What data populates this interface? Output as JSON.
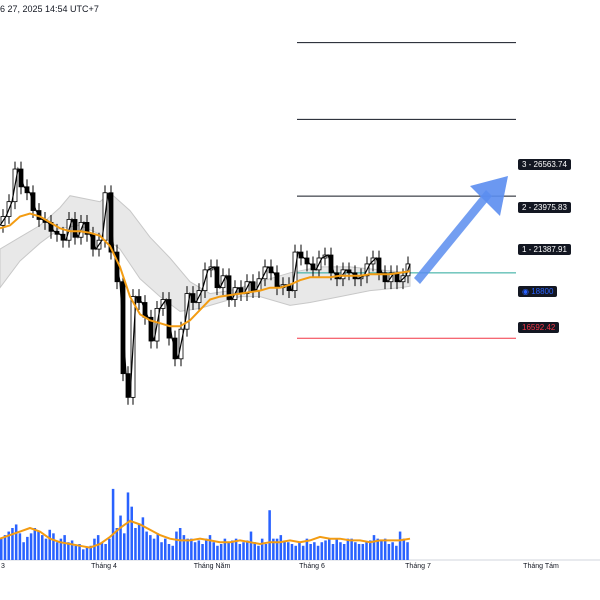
{
  "header": {
    "timestamp_text": "6 27, 2025 14:54 UTC+7"
  },
  "levels": {
    "level3": {
      "label": "3 - 26563.74",
      "color": "#131722"
    },
    "level2": {
      "label": "2 - 23975.83",
      "color": "#131722"
    },
    "level1": {
      "label": "1 - 21387.91",
      "color": "#131722"
    },
    "current": {
      "label": "18800",
      "color": "#26a69a"
    },
    "stop": {
      "label": "16592.42",
      "color": "#f23645"
    }
  },
  "colors": {
    "candle_up": "#ffffff",
    "candle_down": "#000000",
    "ma_line": "#f39c12",
    "volume_bar": "#2962ff",
    "arrow": "#5b8def",
    "channel_fill": "#e8e8e8"
  },
  "chart_data": {
    "type": "line",
    "title": "",
    "xlabel": "",
    "ylabel": "",
    "x_ticks": [
      "3",
      "Tháng 4",
      "Tháng Năm",
      "Tháng 6",
      "Tháng 7",
      "Tháng Tám"
    ],
    "ylim": [
      13500,
      28000
    ],
    "price_path": [
      [
        0,
        20400
      ],
      [
        6,
        20700
      ],
      [
        12,
        21200
      ],
      [
        18,
        22300
      ],
      [
        24,
        21700
      ],
      [
        30,
        21500
      ],
      [
        36,
        20900
      ],
      [
        42,
        20600
      ],
      [
        48,
        20500
      ],
      [
        54,
        20200
      ],
      [
        60,
        20100
      ],
      [
        66,
        19900
      ],
      [
        72,
        20600
      ],
      [
        78,
        20000
      ],
      [
        84,
        20500
      ],
      [
        90,
        20100
      ],
      [
        96,
        19600
      ],
      [
        102,
        19900
      ],
      [
        108,
        21500
      ],
      [
        114,
        19500
      ],
      [
        120,
        18500
      ],
      [
        126,
        15400
      ],
      [
        130,
        14600
      ],
      [
        136,
        18000
      ],
      [
        142,
        17800
      ],
      [
        148,
        17300
      ],
      [
        154,
        16500
      ],
      [
        160,
        17600
      ],
      [
        166,
        17900
      ],
      [
        172,
        16600
      ],
      [
        178,
        15900
      ],
      [
        184,
        16900
      ],
      [
        190,
        18100
      ],
      [
        196,
        17800
      ],
      [
        202,
        18200
      ],
      [
        208,
        18900
      ],
      [
        214,
        19000
      ],
      [
        220,
        18300
      ],
      [
        226,
        18700
      ],
      [
        232,
        17900
      ],
      [
        238,
        18300
      ],
      [
        244,
        18100
      ],
      [
        250,
        18500
      ],
      [
        256,
        18200
      ],
      [
        262,
        18600
      ],
      [
        268,
        19000
      ],
      [
        274,
        18800
      ],
      [
        280,
        18300
      ],
      [
        286,
        18400
      ],
      [
        292,
        18200
      ],
      [
        298,
        19500
      ],
      [
        304,
        19300
      ],
      [
        310,
        19100
      ],
      [
        316,
        18900
      ],
      [
        322,
        19300
      ],
      [
        328,
        19400
      ],
      [
        334,
        18800
      ],
      [
        340,
        18600
      ],
      [
        346,
        18900
      ],
      [
        352,
        18800
      ],
      [
        358,
        18600
      ],
      [
        364,
        18700
      ],
      [
        370,
        19100
      ],
      [
        376,
        19300
      ],
      [
        382,
        18800
      ],
      [
        388,
        18500
      ],
      [
        394,
        18800
      ],
      [
        400,
        18500
      ],
      [
        406,
        18700
      ],
      [
        410,
        19100
      ]
    ],
    "ma_path": [
      [
        0,
        20300
      ],
      [
        10,
        20400
      ],
      [
        20,
        20700
      ],
      [
        30,
        20800
      ],
      [
        40,
        20700
      ],
      [
        50,
        20500
      ],
      [
        60,
        20300
      ],
      [
        70,
        20200
      ],
      [
        80,
        20200
      ],
      [
        90,
        20150
      ],
      [
        100,
        20050
      ],
      [
        110,
        19700
      ],
      [
        120,
        19000
      ],
      [
        130,
        18000
      ],
      [
        140,
        17400
      ],
      [
        150,
        17200
      ],
      [
        160,
        17100
      ],
      [
        170,
        17000
      ],
      [
        180,
        17000
      ],
      [
        190,
        17200
      ],
      [
        200,
        17550
      ],
      [
        210,
        17900
      ],
      [
        220,
        18000
      ],
      [
        230,
        18050
      ],
      [
        240,
        18100
      ],
      [
        250,
        18150
      ],
      [
        260,
        18200
      ],
      [
        270,
        18300
      ],
      [
        280,
        18300
      ],
      [
        290,
        18400
      ],
      [
        300,
        18550
      ],
      [
        310,
        18650
      ],
      [
        320,
        18650
      ],
      [
        330,
        18650
      ],
      [
        340,
        18700
      ],
      [
        350,
        18700
      ],
      [
        360,
        18700
      ],
      [
        370,
        18750
      ],
      [
        380,
        18750
      ],
      [
        390,
        18750
      ],
      [
        400,
        18800
      ],
      [
        410,
        18850
      ]
    ],
    "channel_upper": [
      [
        0,
        19600
      ],
      [
        20,
        20000
      ],
      [
        40,
        20400
      ],
      [
        60,
        21000
      ],
      [
        70,
        21400
      ],
      [
        100,
        21200
      ],
      [
        110,
        21500
      ],
      [
        130,
        20900
      ],
      [
        150,
        20000
      ],
      [
        170,
        19300
      ],
      [
        190,
        18500
      ],
      [
        210,
        18100
      ],
      [
        230,
        18200
      ],
      [
        260,
        18500
      ],
      [
        290,
        18800
      ],
      [
        320,
        19000
      ],
      [
        350,
        19000
      ],
      [
        380,
        18900
      ],
      [
        410,
        18800
      ]
    ],
    "channel_lower": [
      [
        0,
        18300
      ],
      [
        20,
        19200
      ],
      [
        40,
        19800
      ],
      [
        60,
        20300
      ],
      [
        80,
        20400
      ],
      [
        100,
        20100
      ],
      [
        120,
        19600
      ],
      [
        140,
        18600
      ],
      [
        160,
        18000
      ],
      [
        180,
        17500
      ],
      [
        200,
        17600
      ],
      [
        220,
        17800
      ],
      [
        240,
        18000
      ],
      [
        260,
        18000
      ],
      [
        290,
        17700
      ],
      [
        310,
        17800
      ],
      [
        340,
        18000
      ],
      [
        370,
        18200
      ],
      [
        400,
        18300
      ],
      [
        410,
        18350
      ]
    ],
    "fib_levels": [
      {
        "name": "3",
        "value": 26563.74
      },
      {
        "name": "2",
        "value": 23975.83
      },
      {
        "name": "1",
        "value": 21387.91
      },
      {
        "name": "current",
        "value": 18800
      },
      {
        "name": "stop",
        "value": 16592.42
      }
    ],
    "volume": [
      12,
      14,
      16,
      18,
      20,
      15,
      10,
      13,
      15,
      18,
      16,
      14,
      12,
      17,
      15,
      10,
      12,
      14,
      10,
      11,
      8,
      9,
      6,
      7,
      8,
      12,
      14,
      10,
      9,
      12,
      40,
      18,
      25,
      15,
      38,
      30,
      18,
      20,
      24,
      16,
      14,
      12,
      15,
      10,
      12,
      9,
      8,
      16,
      18,
      14,
      12,
      12,
      10,
      11,
      9,
      12,
      14,
      10,
      8,
      9,
      12,
      10,
      11,
      12,
      9,
      10,
      11,
      16,
      10,
      8,
      12,
      9,
      28,
      12,
      12,
      14,
      11,
      10,
      9,
      8,
      10,
      8,
      12,
      9,
      10,
      8,
      10,
      11,
      12,
      9,
      12,
      10,
      9,
      12,
      12,
      10,
      9,
      9,
      10,
      11,
      14,
      12,
      11,
      12,
      9,
      10,
      8,
      16,
      12,
      10
    ],
    "volume_ma": [
      [
        0,
        12
      ],
      [
        10,
        14
      ],
      [
        20,
        16
      ],
      [
        30,
        18
      ],
      [
        40,
        16
      ],
      [
        50,
        12
      ],
      [
        60,
        10
      ],
      [
        70,
        9
      ],
      [
        80,
        8
      ],
      [
        90,
        7
      ],
      [
        100,
        9
      ],
      [
        110,
        13
      ],
      [
        120,
        18
      ],
      [
        130,
        22
      ],
      [
        140,
        20
      ],
      [
        150,
        17
      ],
      [
        160,
        14
      ],
      [
        170,
        12
      ],
      [
        180,
        11
      ],
      [
        190,
        11
      ],
      [
        200,
        12
      ],
      [
        210,
        11
      ],
      [
        220,
        10
      ],
      [
        230,
        10
      ],
      [
        240,
        11
      ],
      [
        250,
        10
      ],
      [
        260,
        9
      ],
      [
        270,
        10
      ],
      [
        280,
        10
      ],
      [
        290,
        11
      ],
      [
        300,
        10
      ],
      [
        310,
        11
      ],
      [
        320,
        13
      ],
      [
        330,
        12
      ],
      [
        340,
        12
      ],
      [
        350,
        11
      ],
      [
        360,
        11
      ],
      [
        370,
        10
      ],
      [
        380,
        11
      ],
      [
        390,
        11
      ],
      [
        400,
        11
      ],
      [
        410,
        12
      ]
    ],
    "volume_ylim": [
      0,
      45
    ]
  }
}
